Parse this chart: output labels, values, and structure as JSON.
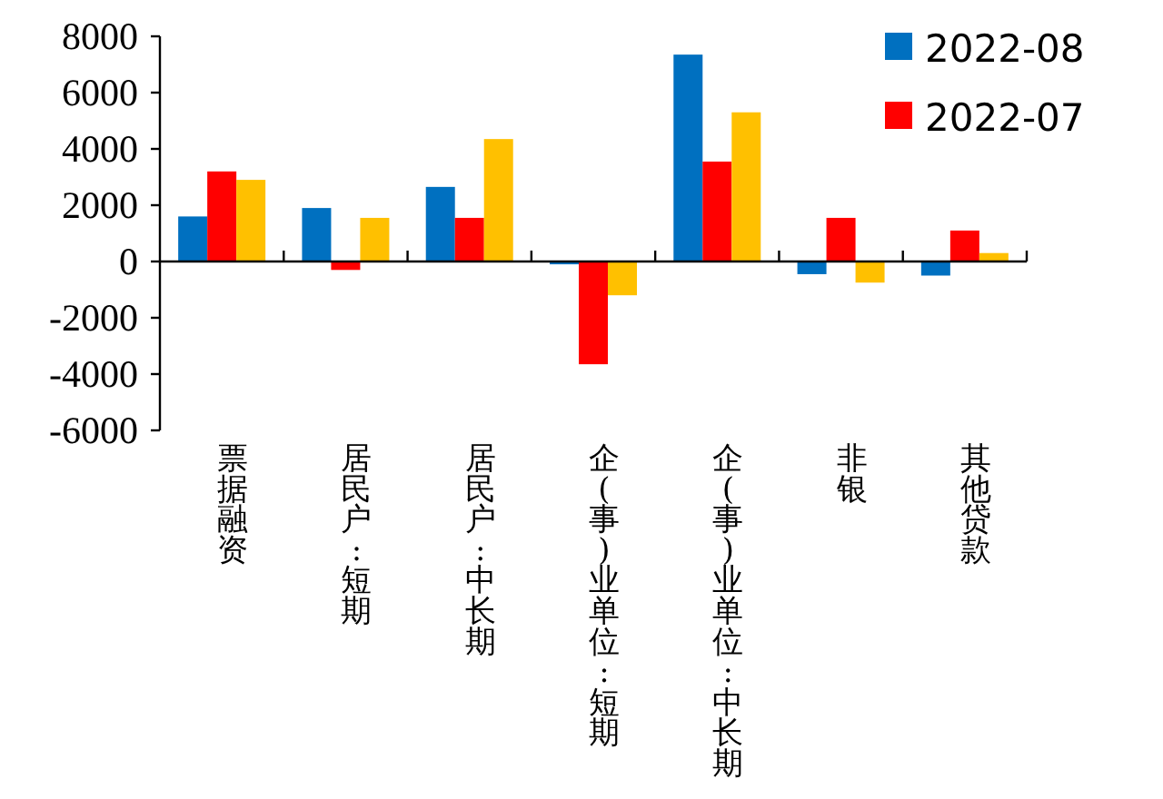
{
  "chart_data": {
    "type": "bar",
    "categories": [
      "票据融资",
      "居民户:短期",
      "居民户:中长期",
      "企(事)业单位:短期",
      "企(事)业单位:中长期",
      "非银",
      "其他贷款"
    ],
    "series": [
      {
        "name": "2022-08",
        "color": "#0070c0",
        "values": [
          1600,
          1900,
          2650,
          -100,
          7350,
          -450,
          -500
        ]
      },
      {
        "name": "2022-07",
        "color": "#ff0000",
        "values": [
          3200,
          -300,
          1550,
          -3650,
          3550,
          1550,
          1100
        ]
      },
      {
        "color": "#ffc000",
        "values": [
          2900,
          1550,
          4350,
          -1200,
          5300,
          -750,
          300
        ]
      }
    ],
    "ylim": [
      -6000,
      8000
    ],
    "yticks": [
      -6000,
      -4000,
      -2000,
      0,
      2000,
      4000,
      6000,
      8000
    ],
    "legend": "top right"
  }
}
